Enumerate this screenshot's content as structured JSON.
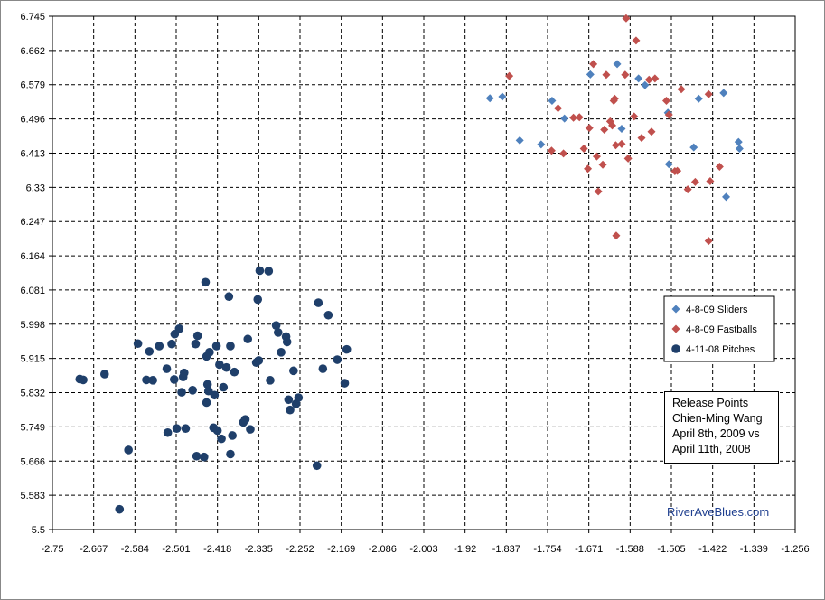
{
  "chart_data": {
    "type": "scatter",
    "title": "",
    "xlabel": "",
    "ylabel": "",
    "xlim": [
      -2.75,
      -1.256
    ],
    "ylim": [
      5.5,
      6.745
    ],
    "x_ticks": [
      "-2.75",
      "-2.667",
      "-2.584",
      "-2.501",
      "-2.418",
      "-2.335",
      "-2.252",
      "-2.169",
      "-2.086",
      "-2.003",
      "-1.92",
      "-1.837",
      "-1.754",
      "-1.671",
      "-1.588",
      "-1.505",
      "-1.422",
      "-1.339",
      "-1.256"
    ],
    "y_ticks": [
      "6.745",
      "6.662",
      "6.579",
      "6.496",
      "6.413",
      "6.33",
      "6.247",
      "6.164",
      "6.081",
      "5.998",
      "5.915",
      "5.832",
      "5.749",
      "5.666",
      "5.583",
      "5.5"
    ],
    "grid": true,
    "legend_placement": "right",
    "annotation": {
      "lines": [
        "Release Points",
        "Chien-Ming Wang",
        "April 8th, 2009 vs",
        "April 11th,  2008"
      ]
    },
    "watermark": "RiverAveBlues.com",
    "series": [
      {
        "name": "4-8-09 Sliders",
        "marker": "diamond",
        "color": "#4f81bd",
        "points": [
          [
            -1.87,
            6.546
          ],
          [
            -1.845,
            6.55
          ],
          [
            -1.81,
            6.444
          ],
          [
            -1.767,
            6.434
          ],
          [
            -1.745,
            6.54
          ],
          [
            -1.72,
            6.497
          ],
          [
            -1.668,
            6.604
          ],
          [
            -1.614,
            6.629
          ],
          [
            -1.605,
            6.472
          ],
          [
            -1.571,
            6.594
          ],
          [
            -1.558,
            6.578
          ],
          [
            -1.512,
            6.511
          ],
          [
            -1.51,
            6.386
          ],
          [
            -1.46,
            6.427
          ],
          [
            -1.45,
            6.545
          ],
          [
            -1.4,
            6.559
          ],
          [
            -1.395,
            6.307
          ],
          [
            -1.37,
            6.44
          ],
          [
            -1.368,
            6.424
          ]
        ]
      },
      {
        "name": "4-8-09 Fastballs",
        "marker": "diamond",
        "color": "#c0504d",
        "points": [
          [
            -1.831,
            6.6
          ],
          [
            -1.746,
            6.419
          ],
          [
            -1.733,
            6.522
          ],
          [
            -1.722,
            6.412
          ],
          [
            -1.702,
            6.499
          ],
          [
            -1.69,
            6.5
          ],
          [
            -1.681,
            6.424
          ],
          [
            -1.673,
            6.375
          ],
          [
            -1.67,
            6.474
          ],
          [
            -1.662,
            6.629
          ],
          [
            -1.655,
            6.405
          ],
          [
            -1.652,
            6.32
          ],
          [
            -1.643,
            6.385
          ],
          [
            -1.64,
            6.47
          ],
          [
            -1.636,
            6.603
          ],
          [
            -1.628,
            6.49
          ],
          [
            -1.624,
            6.48
          ],
          [
            -1.621,
            6.54
          ],
          [
            -1.619,
            6.545
          ],
          [
            -1.617,
            6.432
          ],
          [
            -1.616,
            6.213
          ],
          [
            -1.605,
            6.435
          ],
          [
            -1.598,
            6.603
          ],
          [
            -1.596,
            6.74
          ],
          [
            -1.592,
            6.4
          ],
          [
            -1.58,
            6.502
          ],
          [
            -1.576,
            6.686
          ],
          [
            -1.565,
            6.45
          ],
          [
            -1.55,
            6.591
          ],
          [
            -1.545,
            6.465
          ],
          [
            -1.538,
            6.594
          ],
          [
            -1.515,
            6.54
          ],
          [
            -1.51,
            6.506
          ],
          [
            -1.498,
            6.369
          ],
          [
            -1.493,
            6.37
          ],
          [
            -1.485,
            6.568
          ],
          [
            -1.472,
            6.325
          ],
          [
            -1.457,
            6.343
          ],
          [
            -1.43,
            6.556
          ],
          [
            -1.427,
            6.345
          ],
          [
            -1.43,
            6.2
          ],
          [
            -1.408,
            6.38
          ]
        ]
      },
      {
        "name": "4-11-08 Pitches",
        "marker": "circle",
        "color": "#1f3f6a",
        "points": [
          [
            -2.695,
            5.865
          ],
          [
            -2.688,
            5.863
          ],
          [
            -2.645,
            5.877
          ],
          [
            -2.615,
            5.549
          ],
          [
            -2.597,
            5.693
          ],
          [
            -2.578,
            5.951
          ],
          [
            -2.561,
            5.863
          ],
          [
            -2.555,
            5.932
          ],
          [
            -2.548,
            5.862
          ],
          [
            -2.535,
            5.945
          ],
          [
            -2.52,
            5.89
          ],
          [
            -2.518,
            5.735
          ],
          [
            -2.51,
            5.95
          ],
          [
            -2.505,
            5.864
          ],
          [
            -2.504,
            5.974
          ],
          [
            -2.5,
            5.745
          ],
          [
            -2.495,
            5.987
          ],
          [
            -2.49,
            5.833
          ],
          [
            -2.487,
            5.87
          ],
          [
            -2.485,
            5.88
          ],
          [
            -2.482,
            5.745
          ],
          [
            -2.468,
            5.838
          ],
          [
            -2.462,
            5.95
          ],
          [
            -2.46,
            5.678
          ],
          [
            -2.458,
            5.97
          ],
          [
            -2.445,
            5.676
          ],
          [
            -2.44,
            5.808
          ],
          [
            -2.438,
            5.852
          ],
          [
            -2.436,
            5.836
          ],
          [
            -2.434,
            5.93
          ],
          [
            -2.44,
            5.92
          ],
          [
            -2.442,
            6.1
          ],
          [
            -2.426,
            5.747
          ],
          [
            -2.424,
            5.826
          ],
          [
            -2.42,
            5.945
          ],
          [
            -2.418,
            5.74
          ],
          [
            -2.414,
            5.9
          ],
          [
            -2.41,
            5.72
          ],
          [
            -2.406,
            5.845
          ],
          [
            -2.4,
            5.893
          ],
          [
            -2.395,
            6.065
          ],
          [
            -2.392,
            5.945
          ],
          [
            -2.392,
            5.683
          ],
          [
            -2.388,
            5.728
          ],
          [
            -2.384,
            5.882
          ],
          [
            -2.366,
            5.76
          ],
          [
            -2.362,
            5.767
          ],
          [
            -2.357,
            5.962
          ],
          [
            -2.352,
            5.743
          ],
          [
            -2.34,
            5.905
          ],
          [
            -2.337,
            6.058
          ],
          [
            -2.335,
            5.91
          ],
          [
            -2.333,
            6.128
          ],
          [
            -2.315,
            6.127
          ],
          [
            -2.312,
            5.862
          ],
          [
            -2.3,
            5.995
          ],
          [
            -2.296,
            5.978
          ],
          [
            -2.29,
            5.93
          ],
          [
            -2.28,
            5.968
          ],
          [
            -2.278,
            5.955
          ],
          [
            -2.275,
            5.815
          ],
          [
            -2.272,
            5.79
          ],
          [
            -2.265,
            5.885
          ],
          [
            -2.26,
            5.805
          ],
          [
            -2.255,
            5.82
          ],
          [
            -2.218,
            5.655
          ],
          [
            -2.215,
            6.05
          ],
          [
            -2.206,
            5.89
          ],
          [
            -2.195,
            6.02
          ],
          [
            -2.177,
            5.912
          ],
          [
            -2.162,
            5.855
          ],
          [
            -2.158,
            5.937
          ]
        ]
      }
    ]
  }
}
